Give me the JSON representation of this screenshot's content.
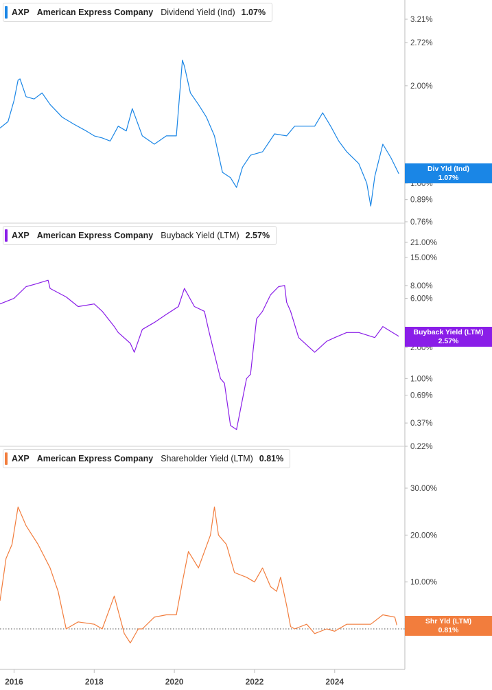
{
  "colors": {
    "dividend": "#1a86e6",
    "buyback": "#8a1ee8",
    "shareholder": "#f27d3d",
    "axis": "#bbbbbb"
  },
  "panels": [
    {
      "legend": {
        "ticker": "AXP",
        "company": "American Express Company",
        "metric": "Dividend Yield (Ind)",
        "value": "1.07%"
      },
      "flag": {
        "label": "Div Yld (Ind)",
        "value": "1.07%"
      },
      "y_ticks": [
        "3.21%",
        "2.72%",
        "2.00%",
        "1.00%",
        "0.89%",
        "0.76%"
      ]
    },
    {
      "legend": {
        "ticker": "AXP",
        "company": "American Express Company",
        "metric": "Buyback Yield (LTM)",
        "value": "2.57%"
      },
      "flag": {
        "label": "Buyback Yield (LTM)",
        "value": "2.57%"
      },
      "y_ticks": [
        "21.00%",
        "15.00%",
        "8.00%",
        "6.00%",
        "2.00%",
        "1.00%",
        "0.69%",
        "0.37%",
        "0.22%"
      ]
    },
    {
      "legend": {
        "ticker": "AXP",
        "company": "American Express Company",
        "metric": "Shareholder Yield (LTM)",
        "value": "0.81%"
      },
      "flag": {
        "label": "Shr Yld (LTM)",
        "value": "0.81%"
      },
      "y_ticks": [
        "30.00%",
        "20.00%",
        "10.00%",
        "0.00%"
      ]
    }
  ],
  "x_axis": {
    "ticks": [
      "2016",
      "2018",
      "2020",
      "2022",
      "2024"
    ]
  },
  "chart_data": [
    {
      "type": "line",
      "series": [
        {
          "name": "Dividend Yield (Ind)",
          "color": "#1a86e6"
        }
      ],
      "y_scale": "log",
      "ylim": [
        0.76,
        3.21
      ],
      "x": [
        2015.65,
        2015.85,
        2016.0,
        2016.1,
        2016.15,
        2016.3,
        2016.5,
        2016.7,
        2016.9,
        2017.2,
        2017.5,
        2017.8,
        2018.0,
        2018.2,
        2018.4,
        2018.6,
        2018.8,
        2018.95,
        2019.2,
        2019.5,
        2019.8,
        2020.05,
        2020.2,
        2020.25,
        2020.4,
        2020.6,
        2020.8,
        2021.0,
        2021.2,
        2021.4,
        2021.55,
        2021.7,
        2021.9,
        2022.2,
        2022.5,
        2022.8,
        2023.0,
        2023.3,
        2023.5,
        2023.7,
        2023.9,
        2024.1,
        2024.3,
        2024.6,
        2024.8,
        2024.9,
        2025.0,
        2025.2,
        2025.4,
        2025.6
      ],
      "values": [
        1.48,
        1.55,
        1.8,
        2.08,
        2.1,
        1.85,
        1.82,
        1.9,
        1.75,
        1.6,
        1.52,
        1.45,
        1.4,
        1.38,
        1.35,
        1.5,
        1.45,
        1.7,
        1.4,
        1.32,
        1.4,
        1.4,
        2.4,
        2.3,
        1.9,
        1.75,
        1.6,
        1.4,
        1.08,
        1.04,
        0.97,
        1.12,
        1.22,
        1.25,
        1.42,
        1.4,
        1.5,
        1.5,
        1.5,
        1.65,
        1.5,
        1.35,
        1.25,
        1.15,
        1.0,
        0.85,
        1.05,
        1.32,
        1.2,
        1.07
      ]
    },
    {
      "type": "line",
      "series": [
        {
          "name": "Buyback Yield (LTM)",
          "color": "#8a1ee8"
        }
      ],
      "y_scale": "log",
      "ylim": [
        0.22,
        21.0
      ],
      "x": [
        2015.65,
        2016.0,
        2016.3,
        2016.5,
        2016.85,
        2016.9,
        2017.3,
        2017.6,
        2018.0,
        2018.2,
        2018.5,
        2018.6,
        2018.9,
        2019.0,
        2019.2,
        2019.5,
        2019.8,
        2020.1,
        2020.25,
        2020.5,
        2020.75,
        2020.85,
        2020.9,
        2021.15,
        2021.25,
        2021.4,
        2021.55,
        2021.8,
        2021.9,
        2022.05,
        2022.2,
        2022.4,
        2022.6,
        2022.75,
        2022.8,
        2022.9,
        2023.1,
        2023.5,
        2023.8,
        2024.0,
        2024.3,
        2024.6,
        2025.0,
        2025.2,
        2025.6
      ],
      "values": [
        5.3,
        6.0,
        7.8,
        8.2,
        9.0,
        7.5,
        6.2,
        5.0,
        5.3,
        4.5,
        3.2,
        2.8,
        2.2,
        1.8,
        3.0,
        3.5,
        4.2,
        5.0,
        7.5,
        5.0,
        4.5,
        3.0,
        2.5,
        1.0,
        0.9,
        0.35,
        0.32,
        1.0,
        1.1,
        3.8,
        4.5,
        6.5,
        7.8,
        8.0,
        5.5,
        4.5,
        2.5,
        1.8,
        2.3,
        2.5,
        2.8,
        2.8,
        2.5,
        3.2,
        2.57
      ]
    },
    {
      "type": "line",
      "series": [
        {
          "name": "Shareholder Yield (LTM)",
          "color": "#f27d3d"
        }
      ],
      "ylim": [
        -5.0,
        30.0
      ],
      "x": [
        2015.65,
        2015.8,
        2015.95,
        2016.1,
        2016.3,
        2016.6,
        2016.9,
        2017.1,
        2017.3,
        2017.6,
        2018.0,
        2018.2,
        2018.5,
        2018.75,
        2018.9,
        2019.1,
        2019.2,
        2019.5,
        2019.8,
        2020.05,
        2020.2,
        2020.35,
        2020.6,
        2020.9,
        2021.0,
        2021.1,
        2021.3,
        2021.5,
        2021.8,
        2022.0,
        2022.2,
        2022.4,
        2022.55,
        2022.65,
        2022.8,
        2022.9,
        2023.0,
        2023.3,
        2023.5,
        2023.8,
        2024.0,
        2024.3,
        2024.6,
        2024.9,
        2025.2,
        2025.5,
        2025.55
      ],
      "values": [
        6.0,
        15.0,
        18.0,
        26.0,
        22.0,
        18.0,
        13.0,
        8.0,
        0.0,
        1.5,
        1.0,
        0.0,
        7.0,
        -1.0,
        -3.0,
        0.0,
        0.0,
        2.5,
        3.0,
        3.0,
        10.0,
        16.5,
        13.0,
        20.0,
        26.0,
        20.0,
        18.0,
        12.0,
        11.0,
        10.0,
        13.0,
        9.0,
        8.0,
        11.0,
        5.0,
        0.5,
        0.0,
        1.0,
        -1.0,
        0.0,
        -0.5,
        1.0,
        1.0,
        1.0,
        3.0,
        2.5,
        0.81
      ]
    }
  ]
}
